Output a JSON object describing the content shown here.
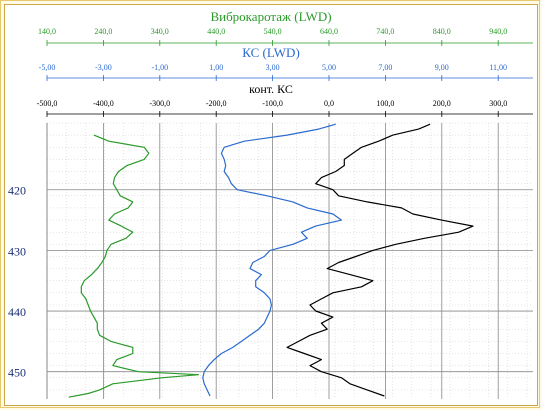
{
  "chart_data": {
    "type": "line",
    "depth_axis": {
      "range": [
        409,
        454.5
      ],
      "ticks": [
        420,
        430,
        440,
        450
      ]
    },
    "scales": [
      {
        "name": "Виброкаротаж  (LWD)",
        "color": "#2a9a2a",
        "range": [
          140,
          990
        ],
        "ticks": [
          "140,0",
          "240,0",
          "340,0",
          "440,0",
          "540,0",
          "640,0",
          "740,0",
          "840,0",
          "940,0"
        ]
      },
      {
        "name": "КС (LWD)",
        "color": "#2a6ad0",
        "range": [
          -5,
          12
        ],
        "ticks": [
          "-5,00",
          "-3,00",
          "-1,00",
          "1,00",
          "3,00",
          "5,00",
          "7,00",
          "9,00",
          "11,00"
        ]
      },
      {
        "name": "конт. КС",
        "color": "#000000",
        "range": [
          -500,
          350
        ],
        "ticks": [
          "-500,0",
          "-400,0",
          "-300,0",
          "-200,0",
          "-100,0",
          "0,0",
          "100,0",
          "200,0",
          "300,0"
        ]
      }
    ],
    "series": [
      {
        "scale": 0,
        "color": "#2a9a2a",
        "points": [
          [
            411,
            222
          ],
          [
            412,
            248
          ],
          [
            413,
            310
          ],
          [
            414,
            318
          ],
          [
            415,
            310
          ],
          [
            416,
            280
          ],
          [
            417,
            265
          ],
          [
            418,
            258
          ],
          [
            419,
            256
          ],
          [
            420,
            262
          ],
          [
            421,
            268
          ],
          [
            422,
            290
          ],
          [
            423,
            282
          ],
          [
            424,
            258
          ],
          [
            425,
            248
          ],
          [
            426,
            270
          ],
          [
            427,
            290
          ],
          [
            428,
            278
          ],
          [
            429,
            252
          ],
          [
            430,
            245
          ],
          [
            431,
            242
          ],
          [
            432,
            236
          ],
          [
            433,
            228
          ],
          [
            434,
            218
          ],
          [
            435,
            205
          ],
          [
            436,
            200
          ],
          [
            437,
            200
          ],
          [
            438,
            208
          ],
          [
            439,
            212
          ],
          [
            440,
            216
          ],
          [
            441,
            222
          ],
          [
            442,
            228
          ],
          [
            443,
            228
          ],
          [
            444,
            232
          ],
          [
            445,
            252
          ],
          [
            446,
            290
          ],
          [
            447,
            290
          ],
          [
            448,
            262
          ],
          [
            449,
            255
          ],
          [
            450,
            300
          ],
          [
            450.5,
            405
          ],
          [
            451,
            340
          ],
          [
            452,
            255
          ],
          [
            453,
            232
          ],
          [
            453.6,
            212
          ],
          [
            454.2,
            178
          ]
        ]
      },
      {
        "scale": 1,
        "color": "#2a6ad0",
        "points": [
          [
            409.2,
            5.1
          ],
          [
            410,
            4.5
          ],
          [
            411,
            3.4
          ],
          [
            412,
            1.9
          ],
          [
            413,
            1.2
          ],
          [
            414,
            1.1
          ],
          [
            415,
            1.2
          ],
          [
            416,
            1.25
          ],
          [
            417,
            1.2
          ],
          [
            418,
            1.35
          ],
          [
            419,
            1.45
          ],
          [
            420,
            1.65
          ],
          [
            421,
            2.7
          ],
          [
            422,
            3.6
          ],
          [
            423,
            4.1
          ],
          [
            424,
            5.0
          ],
          [
            425,
            5.3
          ],
          [
            426,
            4.4
          ],
          [
            427,
            3.9
          ],
          [
            428,
            4.1
          ],
          [
            429,
            3.6
          ],
          [
            430,
            2.8
          ],
          [
            431,
            2.6
          ],
          [
            432,
            2.2
          ],
          [
            433,
            2.1
          ],
          [
            434,
            2.5
          ],
          [
            435,
            2.3
          ],
          [
            436,
            2.3
          ],
          [
            437,
            2.6
          ],
          [
            438,
            2.8
          ],
          [
            439,
            2.85
          ],
          [
            440,
            2.8
          ],
          [
            441,
            2.7
          ],
          [
            442,
            2.6
          ],
          [
            443,
            2.4
          ],
          [
            444,
            2.1
          ],
          [
            445,
            1.8
          ],
          [
            446,
            1.5
          ],
          [
            447,
            1.1
          ],
          [
            448,
            0.85
          ],
          [
            449,
            0.65
          ],
          [
            450,
            0.5
          ],
          [
            451,
            0.45
          ],
          [
            452,
            0.5
          ],
          [
            453,
            0.6
          ],
          [
            454,
            0.7
          ]
        ]
      },
      {
        "scale": 2,
        "color": "#000000",
        "points": [
          [
            409.2,
            170
          ],
          [
            410,
            150
          ],
          [
            411,
            105
          ],
          [
            412,
            80
          ],
          [
            413,
            50
          ],
          [
            414,
            35
          ],
          [
            415,
            20
          ],
          [
            416,
            20
          ],
          [
            417,
            5
          ],
          [
            418,
            -20
          ],
          [
            419,
            -30
          ],
          [
            420,
            0
          ],
          [
            421,
            10
          ],
          [
            422,
            60
          ],
          [
            423,
            120
          ],
          [
            424,
            140
          ],
          [
            425,
            190
          ],
          [
            426,
            245
          ],
          [
            427,
            220
          ],
          [
            428,
            160
          ],
          [
            429,
            110
          ],
          [
            430,
            70
          ],
          [
            431,
            40
          ],
          [
            432,
            10
          ],
          [
            433,
            -10
          ],
          [
            434,
            30
          ],
          [
            435,
            70
          ],
          [
            436,
            50
          ],
          [
            437,
            0
          ],
          [
            438,
            -20
          ],
          [
            439,
            -40
          ],
          [
            440,
            -30
          ],
          [
            441,
            0
          ],
          [
            442,
            -20
          ],
          [
            443,
            -10
          ],
          [
            444,
            -40
          ],
          [
            445,
            -60
          ],
          [
            446,
            -80
          ],
          [
            447,
            -50
          ],
          [
            448,
            -20
          ],
          [
            449,
            -40
          ],
          [
            450,
            -20
          ],
          [
            451,
            15
          ],
          [
            452,
            30
          ],
          [
            453,
            60
          ],
          [
            454,
            90
          ]
        ]
      }
    ]
  }
}
